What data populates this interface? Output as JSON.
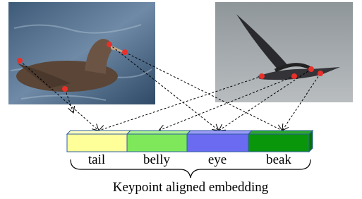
{
  "segments": [
    "tail",
    "belly",
    "eye",
    "beak"
  ],
  "caption": "Keypoint aligned embedding"
}
